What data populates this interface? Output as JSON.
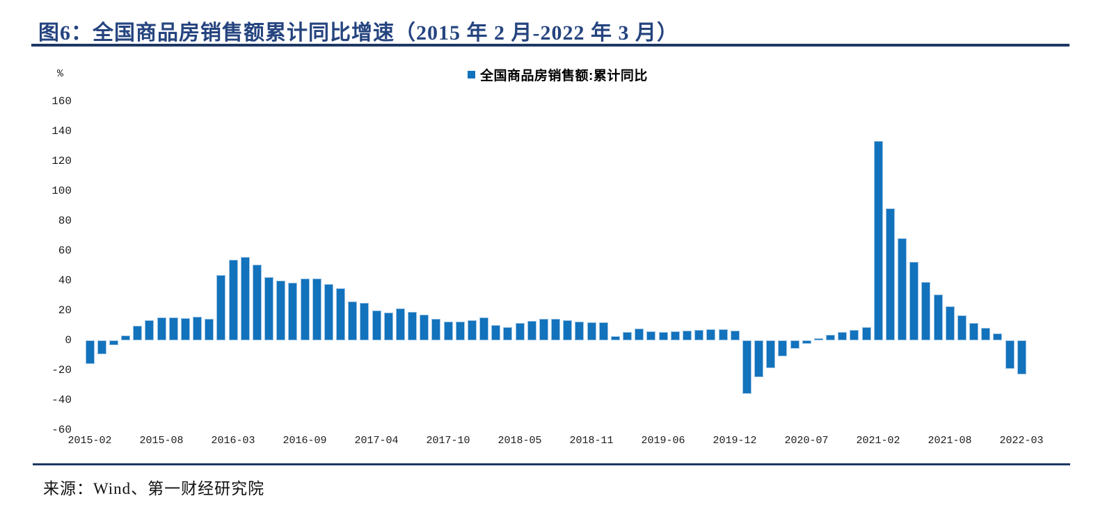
{
  "title": {
    "text": "图6：全国商品房销售额累计同比增速（2015 年 2 月-2022 年 3 月）"
  },
  "legend": {
    "label": "全国商品房销售额:累计同比"
  },
  "source": {
    "text": "来源：Wind、第一财经研究院"
  },
  "colors": {
    "accent_navy": "#1F3864",
    "title_text": "#25447F",
    "bar_fill": "#1272BC",
    "bar_border": "#9CC3E4",
    "axis_text": "#1a1a1a"
  },
  "chart_data": {
    "type": "bar",
    "title": "全国商品房销售额累计同比增速（2015年2月-2022年3月）",
    "series_name": "全国商品房销售额:累计同比",
    "unit_label": "%",
    "xlabel": "",
    "ylabel": "%",
    "ylim": [
      -60,
      160
    ],
    "grid": false,
    "legend_position": "top-center",
    "bar_color": "#1272BC",
    "y_ticks": [
      160,
      140,
      120,
      100,
      80,
      60,
      40,
      20,
      0,
      -20,
      -40,
      -60
    ],
    "x_tick_every": 6,
    "x_ticks": [
      "2015-02",
      "2015-08",
      "2016-03",
      "2016-09",
      "2017-04",
      "2017-10",
      "2018-05",
      "2018-11",
      "2019-06",
      "2019-12",
      "2020-07",
      "2021-02",
      "2021-08",
      "2022-03"
    ],
    "categories": [
      "2015-02",
      "2015-03",
      "2015-04",
      "2015-05",
      "2015-06",
      "2015-07",
      "2015-08",
      "2015-09",
      "2015-10",
      "2015-11",
      "2015-12",
      "2016-02",
      "2016-03",
      "2016-04",
      "2016-05",
      "2016-06",
      "2016-07",
      "2016-08",
      "2016-09",
      "2016-10",
      "2016-11",
      "2016-12",
      "2017-02",
      "2017-03",
      "2017-04",
      "2017-05",
      "2017-06",
      "2017-07",
      "2017-08",
      "2017-09",
      "2017-10",
      "2017-11",
      "2017-12",
      "2018-02",
      "2018-03",
      "2018-04",
      "2018-05",
      "2018-06",
      "2018-07",
      "2018-08",
      "2018-09",
      "2018-10",
      "2018-11",
      "2018-12",
      "2019-02",
      "2019-03",
      "2019-04",
      "2019-05",
      "2019-06",
      "2019-07",
      "2019-08",
      "2019-09",
      "2019-10",
      "2019-11",
      "2019-12",
      "2020-02",
      "2020-03",
      "2020-04",
      "2020-05",
      "2020-06",
      "2020-07",
      "2020-08",
      "2020-09",
      "2020-10",
      "2020-11",
      "2020-12",
      "2021-02",
      "2021-03",
      "2021-04",
      "2021-05",
      "2021-06",
      "2021-07",
      "2021-08",
      "2021-09",
      "2021-10",
      "2021-11",
      "2021-12",
      "2022-02",
      "2022-03"
    ],
    "values": [
      -15.8,
      -9.3,
      -3.1,
      3.1,
      10.0,
      13.4,
      15.3,
      15.3,
      14.9,
      15.6,
      14.4,
      43.6,
      54.1,
      55.9,
      50.7,
      42.1,
      39.8,
      38.7,
      41.3,
      41.2,
      37.5,
      34.8,
      26.0,
      25.1,
      20.1,
      18.6,
      21.5,
      18.9,
      17.2,
      14.6,
      12.6,
      12.7,
      13.7,
      15.3,
      10.4,
      9.0,
      11.8,
      13.2,
      14.4,
      14.5,
      13.3,
      12.5,
      12.1,
      12.2,
      2.8,
      5.6,
      8.1,
      6.1,
      5.6,
      6.2,
      6.7,
      7.1,
      7.3,
      7.3,
      6.5,
      -35.9,
      -24.7,
      -18.6,
      -10.6,
      -5.4,
      -2.1,
      1.6,
      3.7,
      5.8,
      7.2,
      8.7,
      133.4,
      88.5,
      68.2,
      52.4,
      38.9,
      30.7,
      22.8,
      16.6,
      11.8,
      8.5,
      4.8,
      -19.3,
      -22.7
    ]
  }
}
